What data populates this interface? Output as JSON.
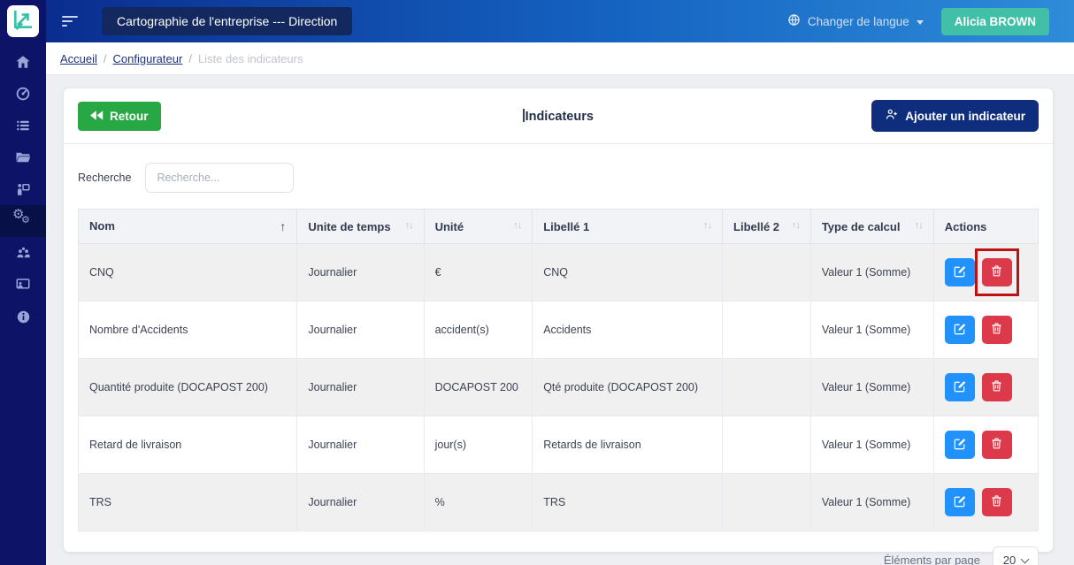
{
  "topbar": {
    "title_chip": "Cartographie de l'entreprise --- Direction",
    "language_label": "Changer de langue",
    "user_name": "Alicia BROWN"
  },
  "breadcrumb": {
    "separator": "/",
    "items": [
      {
        "label": "Accueil",
        "type": "link"
      },
      {
        "label": "Configurateur",
        "type": "link"
      },
      {
        "label": "Liste des indicateurs",
        "type": "current"
      }
    ]
  },
  "sidebar": {
    "icons": [
      "home-icon",
      "dashboard-icon",
      "list-icon",
      "folder-icon",
      "presentation-icon",
      "settings-icon",
      "users-icon",
      "screen-share-icon",
      "info-icon"
    ],
    "active_icon": "settings-icon"
  },
  "card": {
    "back_label": "Retour",
    "title": "Indicateurs",
    "add_label": "Ajouter un indicateur",
    "search_label": "Recherche",
    "search_placeholder": "Recherche..."
  },
  "icons": {
    "sort_asc": "↑",
    "sort_both": "↑↓",
    "gear": "⚙"
  },
  "table": {
    "columns": [
      {
        "label": "Nom",
        "sort": "asc"
      },
      {
        "label": "Unite de temps",
        "sort": "both"
      },
      {
        "label": "Unité",
        "sort": "both"
      },
      {
        "label": "Libellé 1",
        "sort": "both"
      },
      {
        "label": "Libellé 2",
        "sort": "both"
      },
      {
        "label": "Type de calcul",
        "sort": "both"
      },
      {
        "label": "Actions",
        "sort": "none"
      }
    ],
    "rows": [
      {
        "nom": "CNQ",
        "unite_temps": "Journalier",
        "unite": "€",
        "libelle1": "CNQ",
        "libelle2": "",
        "type_calcul": "Valeur 1 (Somme)"
      },
      {
        "nom": "Nombre d'Accidents",
        "unite_temps": "Journalier",
        "unite": "accident(s)",
        "libelle1": "Accidents",
        "libelle2": "",
        "type_calcul": "Valeur 1 (Somme)"
      },
      {
        "nom": "Quantité produite (DOCAPOST 200)",
        "unite_temps": "Journalier",
        "unite": "DOCAPOST 200",
        "libelle1": "Qté produite (DOCAPOST 200)",
        "libelle2": "",
        "type_calcul": "Valeur 1 (Somme)"
      },
      {
        "nom": "Retard de livraison",
        "unite_temps": "Journalier",
        "unite": "jour(s)",
        "libelle1": "Retards de livraison",
        "libelle2": "",
        "type_calcul": "Valeur 1 (Somme)"
      },
      {
        "nom": "TRS",
        "unite_temps": "Journalier",
        "unite": "%",
        "libelle1": "TRS",
        "libelle2": "",
        "type_calcul": "Valeur 1 (Somme)"
      }
    ],
    "action_icons": [
      "edit-icon",
      "trash-icon"
    ]
  },
  "footer": {
    "per_page_label": "Éléments par page",
    "per_page_value": "20"
  },
  "annotation": {
    "type": "highlight-box",
    "target": "row-1-delete-button",
    "color": "#bf1111"
  },
  "colors": {
    "sidebar_bg": "#0d1467",
    "topbar_gradient_left": "#0a2d8f",
    "topbar_gradient_right": "#2e8cd9",
    "chip_bg": "#13285f",
    "user_button": "#41c0a7",
    "back_button": "#28a745",
    "add_button": "#0f2d7d",
    "edit_button": "#2191fb",
    "delete_button": "#dc3a4b",
    "row_stripe": "#f0f0f0",
    "logo_accent": "#35c2a6"
  }
}
